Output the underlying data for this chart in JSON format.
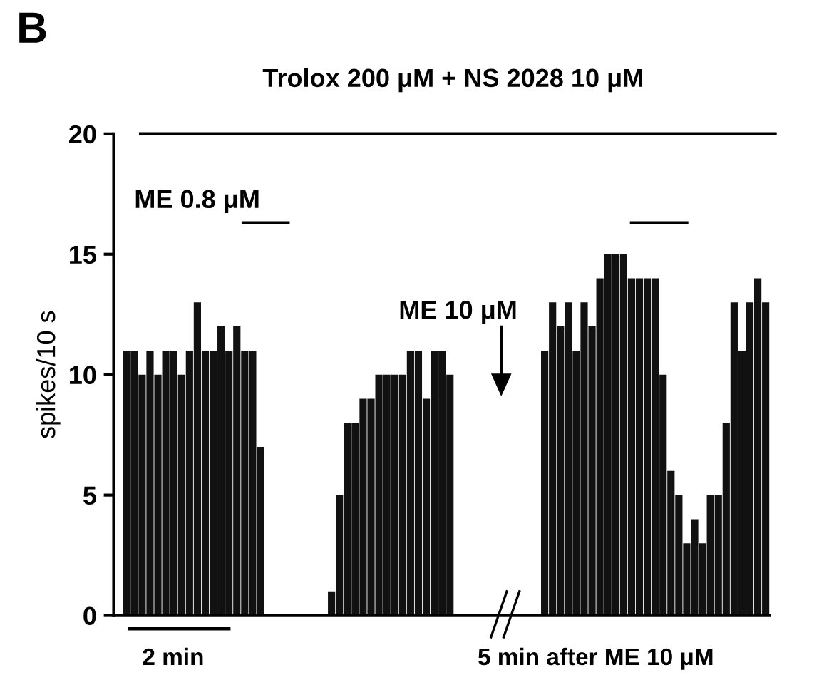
{
  "chart_data": {
    "type": "bar",
    "title": "Trolox 200 μM + NS 2028 10 μM",
    "ylabel": "spikes/10 s",
    "annotations": [
      "B",
      "ME 0.8 μM",
      "ME 10 μM",
      "2 min",
      "5 min after ME 10 μM"
    ],
    "categories": [
      null,
      null,
      null,
      null,
      null,
      null,
      null,
      null,
      null,
      null,
      null,
      null,
      null,
      null,
      null,
      null,
      null,
      null,
      null,
      null,
      null,
      null,
      null,
      null,
      null,
      null,
      null,
      null,
      null,
      null,
      null,
      null,
      null,
      null,
      null,
      null,
      null,
      null,
      null,
      null,
      null,
      null,
      null,
      null,
      null,
      null,
      null,
      null,
      null,
      null,
      null,
      null,
      null,
      null,
      null,
      null,
      null,
      null,
      null,
      null,
      null,
      null,
      null,
      null,
      null,
      null,
      null,
      null,
      null,
      null,
      null,
      null,
      null,
      null,
      null,
      null,
      null,
      null,
      null,
      null,
      null,
      null
    ],
    "values": [
      11,
      11,
      10,
      11,
      10,
      11,
      11,
      10,
      11,
      13,
      11,
      11,
      12,
      11,
      12,
      11,
      11,
      7,
      0,
      0,
      0,
      0,
      0,
      0,
      0,
      0,
      1,
      5,
      8,
      8,
      9,
      9,
      10,
      10,
      10,
      10,
      11,
      11,
      9,
      11,
      11,
      10,
      0,
      0,
      0,
      0,
      0,
      0,
      0,
      0,
      0,
      0,
      0,
      11,
      13,
      12,
      13,
      11,
      13,
      12,
      14,
      15,
      15,
      15,
      14,
      14,
      14,
      14,
      10,
      6,
      5,
      3,
      4,
      3,
      5,
      5,
      8,
      13,
      11,
      13,
      14,
      13
    ],
    "color": "#111111",
    "ylim": [
      0,
      20
    ],
    "yticks": [
      0,
      5,
      10,
      15,
      20
    ],
    "grid": false,
    "legend": false
  }
}
